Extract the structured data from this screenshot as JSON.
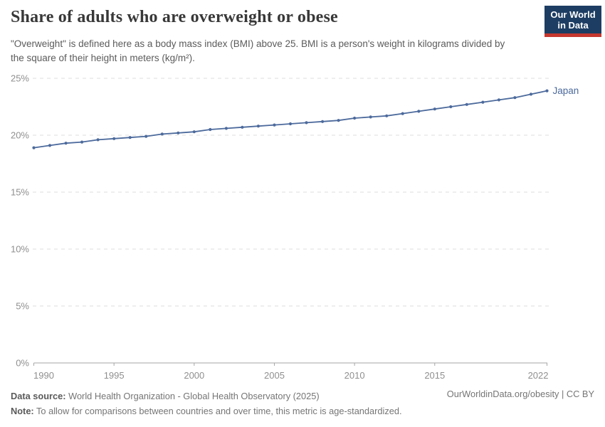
{
  "header": {
    "title": "Share of adults who are overweight or obese",
    "subtitle": "\"Overweight\" is defined here as a body mass index (BMI) above 25. BMI is a person's weight in kilograms divided by the square of their height in meters (kg/m²).",
    "logo": {
      "line1": "Our World",
      "line2": "in Data",
      "bg_color": "#1d3d63",
      "accent_color": "#c5382f"
    }
  },
  "chart_data": {
    "type": "line",
    "title": "Share of adults who are overweight or obese",
    "xlabel": "",
    "ylabel": "",
    "xlim": [
      1990,
      2022
    ],
    "ylim": [
      0,
      25
    ],
    "grid": "horizontal-dashed",
    "legend_position": "end-of-line-label",
    "x": [
      1990,
      1991,
      1992,
      1993,
      1994,
      1995,
      1996,
      1997,
      1998,
      1999,
      2000,
      2001,
      2002,
      2003,
      2004,
      2005,
      2006,
      2007,
      2008,
      2009,
      2010,
      2011,
      2012,
      2013,
      2014,
      2015,
      2016,
      2017,
      2018,
      2019,
      2020,
      2021,
      2022
    ],
    "series": [
      {
        "name": "Japan",
        "color": "#4C6A9C",
        "values": [
          18.9,
          19.1,
          19.3,
          19.4,
          19.6,
          19.7,
          19.8,
          19.9,
          20.1,
          20.2,
          20.3,
          20.5,
          20.6,
          20.7,
          20.8,
          20.9,
          21.0,
          21.1,
          21.2,
          21.3,
          21.5,
          21.6,
          21.7,
          21.9,
          22.1,
          22.3,
          22.5,
          22.7,
          22.9,
          23.1,
          23.3,
          23.6,
          23.9
        ]
      }
    ],
    "xticks": {
      "values": [
        1990,
        1995,
        2000,
        2005,
        2010,
        2015,
        2022
      ],
      "labels": [
        "1990",
        "1995",
        "2000",
        "2005",
        "2010",
        "2015",
        "2022"
      ]
    },
    "yticks": {
      "values": [
        0,
        5,
        10,
        15,
        20,
        25
      ],
      "labels": [
        "0%",
        "5%",
        "10%",
        "15%",
        "20%",
        "25%"
      ]
    }
  },
  "colors": {
    "line": "#4C6A9C",
    "grid": "#dcdcdc",
    "axis": "#a5a5a5",
    "tick_label": "#8f8f8f"
  },
  "footer": {
    "data_source_label": "Data source:",
    "data_source_value": "World Health Organization - Global Health Observatory (2025)",
    "note_label": "Note:",
    "note_value": "To allow for comparisons between countries and over time, this metric is age-standardized.",
    "link": "OurWorldinData.org/obesity | CC BY"
  }
}
